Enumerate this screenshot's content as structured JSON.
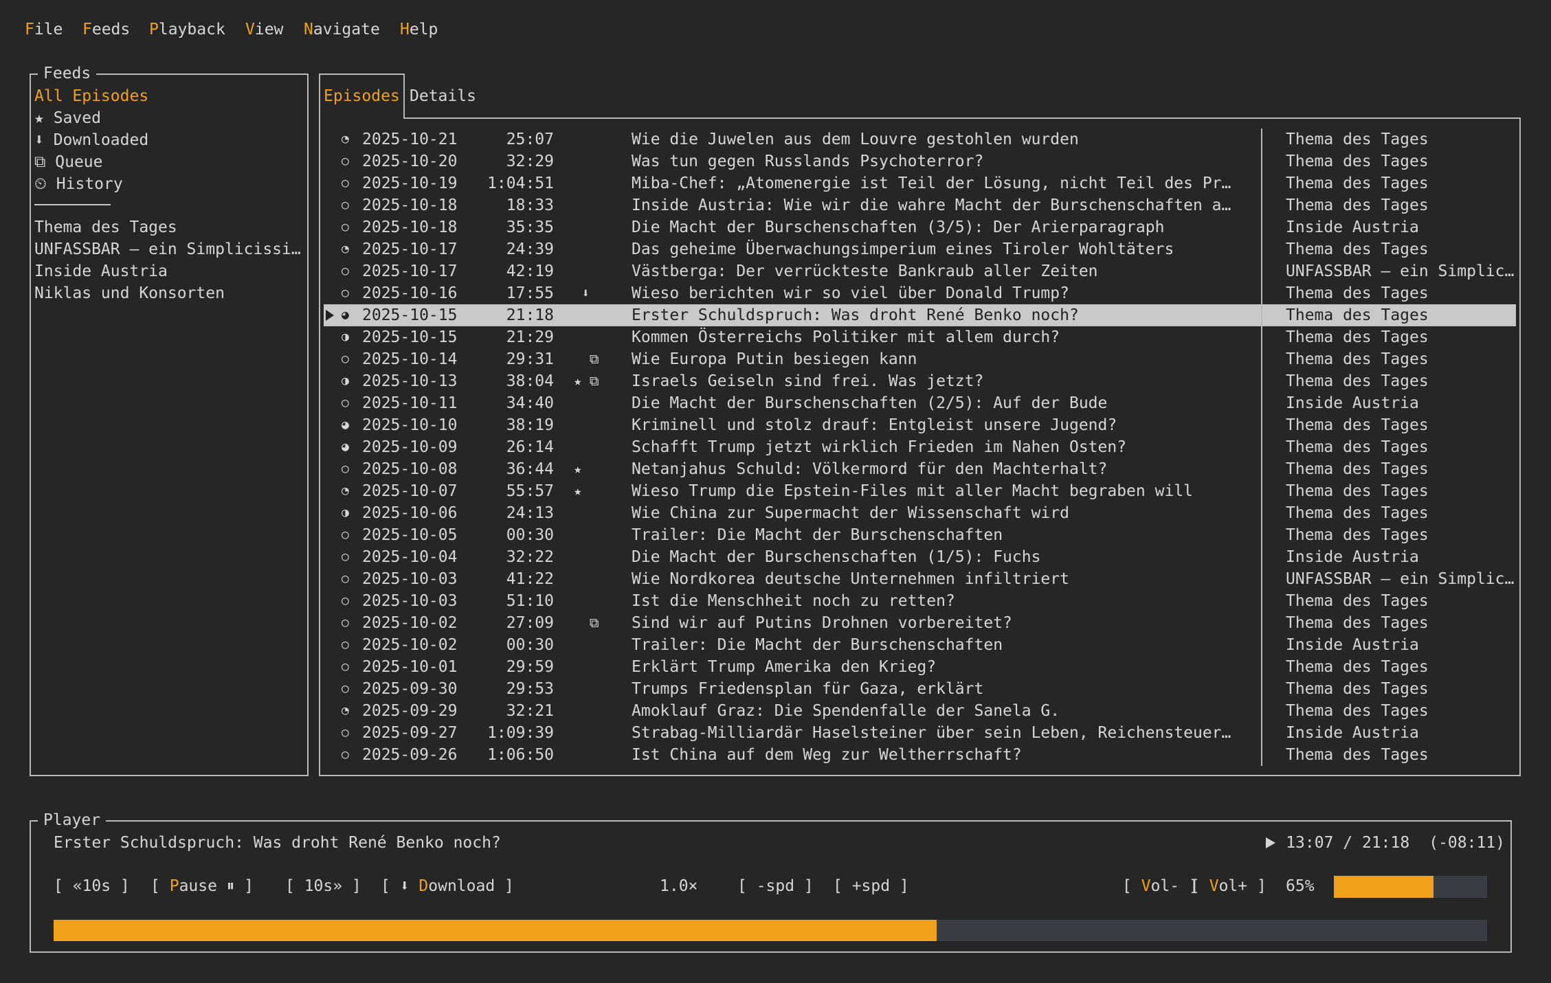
{
  "menu": [
    "File",
    "Feeds",
    "Playback",
    "View",
    "Navigate",
    "Help"
  ],
  "feeds_panel": {
    "title": "Feeds",
    "active": 0,
    "special": [
      "All Episodes",
      "★ Saved",
      "⬇ Downloaded",
      "⧉ Queue",
      "⏲ History"
    ],
    "feeds": [
      "Thema des Tages",
      "UNFASSBAR – ein Simplicissi…",
      "Inside Austria",
      "Niklas und Konsorten"
    ]
  },
  "episodes_panel": {
    "tabs": [
      "Episodes",
      "Details"
    ],
    "active_tab": 0,
    "selected": 8,
    "rows": [
      {
        "status": "◔",
        "date": "2025-10-21",
        "duration": "25:07",
        "title": "Wie die Juwelen aus dem Louvre gestohlen wurden",
        "feed": "Thema des Tages"
      },
      {
        "status": "○",
        "date": "2025-10-20",
        "duration": "32:29",
        "title": "Was tun gegen Russlands Psychoterror?",
        "feed": "Thema des Tages"
      },
      {
        "status": "○",
        "date": "2025-10-19",
        "duration": "1:04:51",
        "title": "Miba-Chef: „Atomenergie ist Teil der Lösung, nicht Teil des Pr…",
        "feed": "Thema des Tages"
      },
      {
        "status": "○",
        "date": "2025-10-18",
        "duration": "18:33",
        "title": "Inside Austria: Wie wir die wahre Macht der Burschenschaften a…",
        "feed": "Thema des Tages"
      },
      {
        "status": "○",
        "date": "2025-10-18",
        "duration": "35:35",
        "title": "Die Macht der Burschenschaften (3/5): Der Arierparagraph",
        "feed": "Inside Austria"
      },
      {
        "status": "◔",
        "date": "2025-10-17",
        "duration": "24:39",
        "title": "Das geheime Überwachungsimperium eines Tiroler Wohltäters",
        "feed": "Thema des Tages"
      },
      {
        "status": "○",
        "date": "2025-10-17",
        "duration": "42:19",
        "title": "Västberga: Der verrückteste Bankraub aller Zeiten",
        "feed": "UNFASSBAR – ein Simplic…"
      },
      {
        "status": "○",
        "date": "2025-10-16",
        "duration": "17:55",
        "flags": " ⬇",
        "title": "Wieso berichten wir so viel über Donald Trump?",
        "feed": "Thema des Tages"
      },
      {
        "status": "◕",
        "date": "2025-10-15",
        "duration": "21:18",
        "title": "Erster Schuldspruch: Was droht René Benko noch?",
        "feed": "Thema des Tages"
      },
      {
        "status": "◑",
        "date": "2025-10-15",
        "duration": "21:29",
        "title": "Kommen Österreichs Politiker mit allem durch?",
        "feed": "Thema des Tages"
      },
      {
        "status": "○",
        "date": "2025-10-14",
        "duration": "29:31",
        "flags": "  ⧉",
        "title": "Wie Europa Putin besiegen kann",
        "feed": "Thema des Tages"
      },
      {
        "status": "◑",
        "date": "2025-10-13",
        "duration": "38:04",
        "flags": "★ ⧉",
        "title": "Israels Geiseln sind frei. Was jetzt?",
        "feed": "Thema des Tages"
      },
      {
        "status": "○",
        "date": "2025-10-11",
        "duration": "34:40",
        "title": "Die Macht der Burschenschaften (2/5): Auf der Bude",
        "feed": "Inside Austria"
      },
      {
        "status": "◕",
        "date": "2025-10-10",
        "duration": "38:19",
        "title": "Kriminell und stolz drauf: Entgleist unsere Jugend?",
        "feed": "Thema des Tages"
      },
      {
        "status": "◕",
        "date": "2025-10-09",
        "duration": "26:14",
        "title": "Schafft Trump jetzt wirklich Frieden im Nahen Osten?",
        "feed": "Thema des Tages"
      },
      {
        "status": "○",
        "date": "2025-10-08",
        "duration": "36:44",
        "flags": "★",
        "title": "Netanjahus Schuld: Völkermord für den Machterhalt?",
        "feed": "Thema des Tages"
      },
      {
        "status": "◔",
        "date": "2025-10-07",
        "duration": "55:57",
        "flags": "★",
        "title": "Wieso Trump die Epstein-Files mit aller Macht begraben will",
        "feed": "Thema des Tages"
      },
      {
        "status": "◑",
        "date": "2025-10-06",
        "duration": "24:13",
        "title": "Wie China zur Supermacht der Wissenschaft wird",
        "feed": "Thema des Tages"
      },
      {
        "status": "○",
        "date": "2025-10-05",
        "duration": "00:30",
        "title": "Trailer: Die Macht der Burschenschaften",
        "feed": "Thema des Tages"
      },
      {
        "status": "○",
        "date": "2025-10-04",
        "duration": "32:22",
        "title": "Die Macht der Burschenschaften (1/5): Fuchs",
        "feed": "Inside Austria"
      },
      {
        "status": "○",
        "date": "2025-10-03",
        "duration": "41:22",
        "title": "Wie Nordkorea deutsche Unternehmen infiltriert",
        "feed": "UNFASSBAR – ein Simplic…"
      },
      {
        "status": "○",
        "date": "2025-10-03",
        "duration": "51:10",
        "title": "Ist die Menschheit noch zu retten?",
        "feed": "Thema des Tages"
      },
      {
        "status": "○",
        "date": "2025-10-02",
        "duration": "27:09",
        "flags": "  ⧉",
        "title": "Sind wir auf Putins Drohnen vorbereitet?",
        "feed": "Thema des Tages"
      },
      {
        "status": "○",
        "date": "2025-10-02",
        "duration": "00:30",
        "title": "Trailer: Die Macht der Burschenschaften",
        "feed": "Inside Austria"
      },
      {
        "status": "○",
        "date": "2025-10-01",
        "duration": "29:59",
        "title": "Erklärt Trump Amerika den Krieg?",
        "feed": "Thema des Tages"
      },
      {
        "status": "○",
        "date": "2025-09-30",
        "duration": "29:53",
        "title": "Trumps Friedensplan für Gaza, erklärt",
        "feed": "Thema des Tages"
      },
      {
        "status": "◔",
        "date": "2025-09-29",
        "duration": "32:21",
        "title": "Amoklauf Graz: Die Spendenfalle der Sanela G.",
        "feed": "Thema des Tages"
      },
      {
        "status": "○",
        "date": "2025-09-27",
        "duration": "1:09:39",
        "title": "Strabag-Milliardär Haselsteiner über sein Leben, Reichensteuer…",
        "feed": "Inside Austria"
      },
      {
        "status": "○",
        "date": "2025-09-26",
        "duration": "1:06:50",
        "title": "Ist China auf dem Weg zur Weltherrschaft?",
        "feed": "Thema des Tages"
      }
    ]
  },
  "player": {
    "title": "Player",
    "episode": "Erster Schuldspruch: Was droht René Benko noch?",
    "time": "13:07 / 21:18",
    "remaining": "(-08:11)",
    "controls": [
      {
        "text": "[ «10s ]"
      },
      {
        "text": "[ Pause ⏸ ]",
        "hotkey": "P"
      },
      {
        "text": "[ 10s» ]"
      },
      {
        "text": "[ ⬇ Download ]",
        "hotkey": "D"
      },
      {
        "text": "1.0×"
      },
      {
        "text": "[ -spd ]"
      },
      {
        "text": "[ +spd ]"
      },
      {
        "text": "[ Vol- ]",
        "hotkey": "V"
      },
      {
        "text": "[ Vol+ ]",
        "hotkey": "V"
      }
    ],
    "volume": {
      "value": 65,
      "label": "65%"
    }
  }
}
